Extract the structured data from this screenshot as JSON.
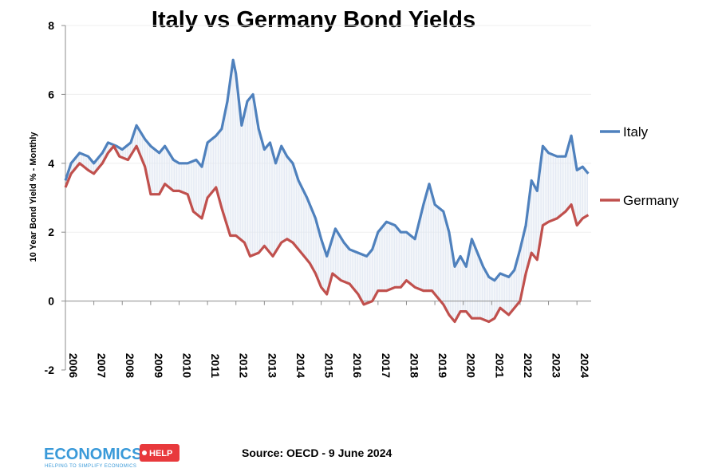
{
  "chart_data": {
    "type": "line",
    "title": "Italy vs Germany Bond Yields",
    "ylabel": "10 Year Bond Yield % - Monthly",
    "xlabel": "",
    "ylim": [
      -2,
      8
    ],
    "yticks": [
      "8",
      "6",
      "4",
      "2",
      "0",
      "-2"
    ],
    "xticks": [
      "2006",
      "2007",
      "2008",
      "2009",
      "2010",
      "2011",
      "2012",
      "2013",
      "2014",
      "2015",
      "2016",
      "2017",
      "2018",
      "2019",
      "2020",
      "2021",
      "2022",
      "2023",
      "2024"
    ],
    "xlim": [
      2006,
      2024.5
    ],
    "grid": true,
    "legend_position": "right",
    "source": "Source: OECD - 9 June 2024",
    "series": [
      {
        "name": "Italy",
        "color": "#4F81BD",
        "points": [
          [
            2006.0,
            3.5
          ],
          [
            2006.2,
            4.0
          ],
          [
            2006.5,
            4.3
          ],
          [
            2006.8,
            4.2
          ],
          [
            2007.0,
            4.0
          ],
          [
            2007.3,
            4.3
          ],
          [
            2007.5,
            4.6
          ],
          [
            2007.8,
            4.5
          ],
          [
            2008.0,
            4.4
          ],
          [
            2008.3,
            4.6
          ],
          [
            2008.5,
            5.1
          ],
          [
            2008.8,
            4.7
          ],
          [
            2009.0,
            4.5
          ],
          [
            2009.3,
            4.3
          ],
          [
            2009.5,
            4.5
          ],
          [
            2009.8,
            4.1
          ],
          [
            2010.0,
            4.0
          ],
          [
            2010.3,
            4.0
          ],
          [
            2010.6,
            4.1
          ],
          [
            2010.8,
            3.9
          ],
          [
            2011.0,
            4.6
          ],
          [
            2011.3,
            4.8
          ],
          [
            2011.5,
            5.0
          ],
          [
            2011.7,
            5.8
          ],
          [
            2011.9,
            7.0
          ],
          [
            2012.0,
            6.6
          ],
          [
            2012.2,
            5.1
          ],
          [
            2012.4,
            5.8
          ],
          [
            2012.6,
            6.0
          ],
          [
            2012.8,
            5.0
          ],
          [
            2013.0,
            4.4
          ],
          [
            2013.2,
            4.6
          ],
          [
            2013.4,
            4.0
          ],
          [
            2013.6,
            4.5
          ],
          [
            2013.8,
            4.2
          ],
          [
            2014.0,
            4.0
          ],
          [
            2014.2,
            3.5
          ],
          [
            2014.5,
            3.0
          ],
          [
            2014.8,
            2.4
          ],
          [
            2015.0,
            1.8
          ],
          [
            2015.2,
            1.3
          ],
          [
            2015.5,
            2.1
          ],
          [
            2015.8,
            1.7
          ],
          [
            2016.0,
            1.5
          ],
          [
            2016.3,
            1.4
          ],
          [
            2016.6,
            1.3
          ],
          [
            2016.8,
            1.5
          ],
          [
            2017.0,
            2.0
          ],
          [
            2017.3,
            2.3
          ],
          [
            2017.6,
            2.2
          ],
          [
            2017.8,
            2.0
          ],
          [
            2018.0,
            2.0
          ],
          [
            2018.3,
            1.8
          ],
          [
            2018.6,
            2.8
          ],
          [
            2018.8,
            3.4
          ],
          [
            2019.0,
            2.8
          ],
          [
            2019.3,
            2.6
          ],
          [
            2019.5,
            2.0
          ],
          [
            2019.7,
            1.0
          ],
          [
            2019.9,
            1.3
          ],
          [
            2020.1,
            1.0
          ],
          [
            2020.3,
            1.8
          ],
          [
            2020.5,
            1.4
          ],
          [
            2020.7,
            1.0
          ],
          [
            2020.9,
            0.7
          ],
          [
            2021.1,
            0.6
          ],
          [
            2021.3,
            0.8
          ],
          [
            2021.6,
            0.7
          ],
          [
            2021.8,
            0.9
          ],
          [
            2022.0,
            1.5
          ],
          [
            2022.2,
            2.2
          ],
          [
            2022.4,
            3.5
          ],
          [
            2022.6,
            3.2
          ],
          [
            2022.8,
            4.5
          ],
          [
            2023.0,
            4.3
          ],
          [
            2023.3,
            4.2
          ],
          [
            2023.6,
            4.2
          ],
          [
            2023.8,
            4.8
          ],
          [
            2024.0,
            3.8
          ],
          [
            2024.2,
            3.9
          ],
          [
            2024.4,
            3.7
          ]
        ]
      },
      {
        "name": "Germany",
        "color": "#C0504D",
        "points": [
          [
            2006.0,
            3.3
          ],
          [
            2006.2,
            3.7
          ],
          [
            2006.5,
            4.0
          ],
          [
            2006.8,
            3.8
          ],
          [
            2007.0,
            3.7
          ],
          [
            2007.3,
            4.0
          ],
          [
            2007.5,
            4.3
          ],
          [
            2007.7,
            4.5
          ],
          [
            2007.9,
            4.2
          ],
          [
            2008.2,
            4.1
          ],
          [
            2008.5,
            4.5
          ],
          [
            2008.8,
            3.9
          ],
          [
            2009.0,
            3.1
          ],
          [
            2009.3,
            3.1
          ],
          [
            2009.5,
            3.4
          ],
          [
            2009.8,
            3.2
          ],
          [
            2010.0,
            3.2
          ],
          [
            2010.3,
            3.1
          ],
          [
            2010.5,
            2.6
          ],
          [
            2010.8,
            2.4
          ],
          [
            2011.0,
            3.0
          ],
          [
            2011.3,
            3.3
          ],
          [
            2011.5,
            2.7
          ],
          [
            2011.8,
            1.9
          ],
          [
            2012.0,
            1.9
          ],
          [
            2012.3,
            1.7
          ],
          [
            2012.5,
            1.3
          ],
          [
            2012.8,
            1.4
          ],
          [
            2013.0,
            1.6
          ],
          [
            2013.3,
            1.3
          ],
          [
            2013.6,
            1.7
          ],
          [
            2013.8,
            1.8
          ],
          [
            2014.0,
            1.7
          ],
          [
            2014.3,
            1.4
          ],
          [
            2014.6,
            1.1
          ],
          [
            2014.8,
            0.8
          ],
          [
            2015.0,
            0.4
          ],
          [
            2015.2,
            0.2
          ],
          [
            2015.4,
            0.8
          ],
          [
            2015.7,
            0.6
          ],
          [
            2016.0,
            0.5
          ],
          [
            2016.3,
            0.2
          ],
          [
            2016.5,
            -0.1
          ],
          [
            2016.8,
            0.0
          ],
          [
            2017.0,
            0.3
          ],
          [
            2017.3,
            0.3
          ],
          [
            2017.6,
            0.4
          ],
          [
            2017.8,
            0.4
          ],
          [
            2018.0,
            0.6
          ],
          [
            2018.3,
            0.4
          ],
          [
            2018.6,
            0.3
          ],
          [
            2018.9,
            0.3
          ],
          [
            2019.1,
            0.1
          ],
          [
            2019.3,
            -0.1
          ],
          [
            2019.5,
            -0.4
          ],
          [
            2019.7,
            -0.6
          ],
          [
            2019.9,
            -0.3
          ],
          [
            2020.1,
            -0.3
          ],
          [
            2020.3,
            -0.5
          ],
          [
            2020.6,
            -0.5
          ],
          [
            2020.9,
            -0.6
          ],
          [
            2021.1,
            -0.5
          ],
          [
            2021.3,
            -0.2
          ],
          [
            2021.6,
            -0.4
          ],
          [
            2021.8,
            -0.2
          ],
          [
            2022.0,
            0.0
          ],
          [
            2022.2,
            0.8
          ],
          [
            2022.4,
            1.4
          ],
          [
            2022.6,
            1.2
          ],
          [
            2022.8,
            2.2
          ],
          [
            2023.0,
            2.3
          ],
          [
            2023.3,
            2.4
          ],
          [
            2023.6,
            2.6
          ],
          [
            2023.8,
            2.8
          ],
          [
            2024.0,
            2.2
          ],
          [
            2024.2,
            2.4
          ],
          [
            2024.4,
            2.5
          ]
        ]
      }
    ]
  },
  "logo": {
    "text_main": "ECONOMICS",
    "text_badge": "HELP",
    "tagline": "HELPING TO SIMPLIFY ECONOMICS"
  }
}
